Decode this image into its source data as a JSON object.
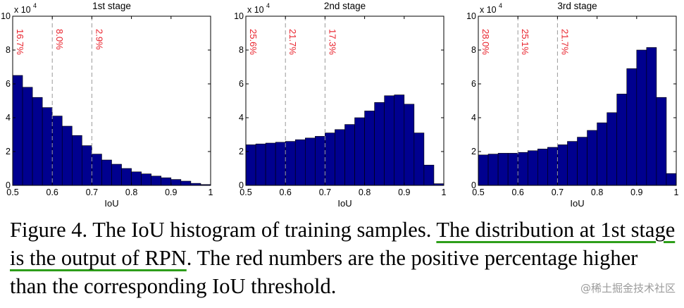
{
  "chart_data": [
    {
      "type": "bar",
      "title": "1st stage",
      "xlabel": "IoU",
      "ylabel": "",
      "y_multiplier": "x 10",
      "y_multiplier_exp": "4",
      "xlim": [
        0.5,
        1.0
      ],
      "ylim": [
        0,
        10
      ],
      "xticks": [
        "0.5",
        "0.6",
        "0.7",
        "0.8",
        "0.9",
        "1"
      ],
      "yticks": [
        "0",
        "2",
        "4",
        "6",
        "8",
        "10"
      ],
      "bin_edges": [
        0.5,
        0.525,
        0.55,
        0.575,
        0.6,
        0.625,
        0.65,
        0.675,
        0.7,
        0.725,
        0.75,
        0.775,
        0.8,
        0.825,
        0.85,
        0.875,
        0.9,
        0.925,
        0.95,
        0.975,
        1.0
      ],
      "values": [
        6.5,
        5.8,
        5.2,
        4.6,
        4.1,
        3.5,
        2.95,
        2.35,
        1.85,
        1.5,
        1.25,
        1.0,
        0.8,
        0.68,
        0.55,
        0.45,
        0.35,
        0.25,
        0.12,
        0.05
      ],
      "thresholds": [
        {
          "x": 0.5,
          "label": "16.7%"
        },
        {
          "x": 0.6,
          "label": "8.0%"
        },
        {
          "x": 0.7,
          "label": "2.9%"
        }
      ]
    },
    {
      "type": "bar",
      "title": "2nd stage",
      "xlabel": "IoU",
      "ylabel": "",
      "y_multiplier": "x 10",
      "y_multiplier_exp": "4",
      "xlim": [
        0.5,
        1.0
      ],
      "ylim": [
        0,
        10
      ],
      "xticks": [
        "0.5",
        "0.6",
        "0.7",
        "0.8",
        "0.9",
        "1"
      ],
      "yticks": [
        "0",
        "2",
        "4",
        "6",
        "8",
        "10"
      ],
      "bin_edges": [
        0.5,
        0.525,
        0.55,
        0.575,
        0.6,
        0.625,
        0.65,
        0.675,
        0.7,
        0.725,
        0.75,
        0.775,
        0.8,
        0.825,
        0.85,
        0.875,
        0.9,
        0.925,
        0.95,
        0.975,
        1.0
      ],
      "values": [
        2.4,
        2.45,
        2.5,
        2.55,
        2.6,
        2.7,
        2.8,
        2.9,
        3.1,
        3.3,
        3.6,
        4.0,
        4.4,
        4.9,
        5.3,
        5.35,
        4.8,
        3.1,
        1.2,
        0.1
      ],
      "thresholds": [
        {
          "x": 0.5,
          "label": "25.6%"
        },
        {
          "x": 0.6,
          "label": "21.7%"
        },
        {
          "x": 0.7,
          "label": "17.3%"
        }
      ]
    },
    {
      "type": "bar",
      "title": "3rd stage",
      "xlabel": "IoU",
      "ylabel": "",
      "y_multiplier": "x 10",
      "y_multiplier_exp": "4",
      "xlim": [
        0.5,
        1.0
      ],
      "ylim": [
        0,
        10
      ],
      "xticks": [
        "0.5",
        "0.6",
        "0.7",
        "0.8",
        "0.9",
        "1"
      ],
      "yticks": [
        "0",
        "2",
        "4",
        "6",
        "8",
        "10"
      ],
      "bin_edges": [
        0.5,
        0.525,
        0.55,
        0.575,
        0.6,
        0.625,
        0.65,
        0.675,
        0.7,
        0.725,
        0.75,
        0.775,
        0.8,
        0.825,
        0.85,
        0.875,
        0.9,
        0.925,
        0.95,
        0.975,
        1.0
      ],
      "values": [
        1.8,
        1.85,
        1.9,
        1.9,
        1.95,
        2.05,
        2.15,
        2.25,
        2.4,
        2.6,
        2.85,
        3.25,
        3.7,
        4.3,
        5.4,
        6.9,
        8.0,
        8.15,
        5.2,
        0.7
      ],
      "thresholds": [
        {
          "x": 0.5,
          "label": "28.0%"
        },
        {
          "x": 0.6,
          "label": "25.1%"
        },
        {
          "x": 0.7,
          "label": "21.7%"
        }
      ]
    }
  ],
  "colors": {
    "bar_fill": "#00008f",
    "bar_stroke": "#000000",
    "threshold_line": "#9a9a9a",
    "threshold_text": "#e8202a",
    "underline": "#2e9e1a"
  },
  "caption": {
    "part1": "Figure 4. The IoU histogram of training samples. ",
    "highlight": "The distribution at 1st stage is the output of RPN",
    "part2": ". The red numbers are the positive percentage higher than the corresponding IoU threshold."
  },
  "watermark": "@稀土掘金技术社区"
}
